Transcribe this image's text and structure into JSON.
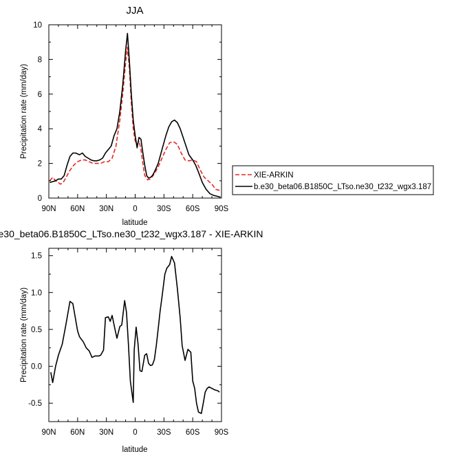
{
  "chart_data": [
    {
      "type": "line",
      "title": "JJA",
      "xlabel": "latitude",
      "ylabel": "Precipitation rate (mm/day)",
      "xlim": [
        90,
        -90
      ],
      "ylim": [
        0,
        10
      ],
      "xticks": [
        90,
        60,
        30,
        0,
        -30,
        -60,
        -90
      ],
      "xtick_labels": [
        "90N",
        "60N",
        "30N",
        "0",
        "30S",
        "60S",
        "90S"
      ],
      "yticks": [
        0,
        2,
        4,
        6,
        8,
        10
      ],
      "ytick_labels": [
        "0",
        "2",
        "4",
        "6",
        "8",
        "10"
      ],
      "grid": false,
      "legend": "right",
      "series": [
        {
          "name": "XIE-ARKIN",
          "color": "#e8261f",
          "dash": "dashed",
          "x": [
            89,
            86,
            83,
            80,
            78,
            75,
            72,
            68,
            64,
            60,
            56,
            52,
            48,
            44,
            40,
            36,
            32,
            28,
            24,
            20,
            16,
            13,
            10,
            8,
            6,
            4,
            2,
            0,
            -2,
            -4,
            -6,
            -8,
            -10,
            -13,
            -16,
            -20,
            -24,
            -28,
            -32,
            -36,
            -40,
            -44,
            -48,
            -52,
            -56,
            -60,
            -64,
            -68,
            -72,
            -76,
            -80,
            -84,
            -88
          ],
          "values": [
            1.0,
            1.2,
            1.0,
            0.9,
            0.8,
            0.9,
            1.2,
            1.6,
            1.9,
            2.1,
            2.2,
            2.2,
            2.1,
            2.0,
            2.0,
            2.0,
            2.1,
            2.1,
            2.3,
            3.0,
            4.5,
            6.0,
            7.8,
            8.7,
            7.5,
            5.5,
            4.0,
            3.3,
            3.1,
            3.3,
            2.8,
            2.0,
            1.3,
            1.05,
            1.1,
            1.4,
            1.8,
            2.3,
            2.8,
            3.2,
            3.25,
            3.1,
            2.6,
            2.2,
            2.15,
            2.2,
            2.1,
            1.6,
            1.2,
            1.0,
            0.8,
            0.5,
            0.45
          ]
        },
        {
          "name": "b.e30_beta06.B1850C_LTso.ne30_t232_wgx3.187",
          "color": "#000000",
          "dash": "solid",
          "x": [
            89,
            86,
            83,
            80,
            77,
            74,
            71,
            68,
            65,
            62,
            58,
            55,
            52,
            49,
            46,
            43,
            40,
            37,
            34,
            31,
            28,
            25,
            22,
            19,
            16,
            13,
            10,
            8,
            6,
            4,
            2,
            0,
            -2,
            -4,
            -6,
            -8,
            -10,
            -12,
            -14,
            -16,
            -18,
            -20,
            -24,
            -28,
            -32,
            -35,
            -38,
            -41,
            -44,
            -47,
            -50,
            -53,
            -56,
            -60,
            -63,
            -66,
            -70,
            -74,
            -78,
            -82,
            -86,
            -89
          ],
          "values": [
            0.9,
            0.95,
            1.0,
            1.1,
            1.1,
            1.3,
            1.9,
            2.4,
            2.6,
            2.6,
            2.5,
            2.6,
            2.4,
            2.3,
            2.2,
            2.15,
            2.15,
            2.2,
            2.3,
            2.6,
            2.8,
            3.0,
            3.6,
            4.0,
            5.0,
            6.5,
            8.5,
            9.5,
            7.9,
            6.0,
            4.5,
            3.6,
            2.9,
            3.5,
            3.4,
            2.6,
            1.9,
            1.3,
            1.15,
            1.2,
            1.3,
            1.5,
            2.0,
            2.8,
            3.6,
            4.1,
            4.4,
            4.5,
            4.35,
            4.0,
            3.5,
            3.0,
            2.5,
            2.2,
            1.9,
            1.5,
            0.9,
            0.5,
            0.25,
            0.15,
            0.1,
            0.05
          ]
        }
      ]
    },
    {
      "type": "line",
      "title": "e30_beta06.B1850C_LTso.ne30_t232_wgx3.187 - XIE-ARKIN",
      "xlabel": "latitude",
      "ylabel": "Precipitation rate (mm/day)",
      "xlim": [
        90,
        -90
      ],
      "ylim": [
        -0.75,
        1.6
      ],
      "xticks": [
        90,
        60,
        30,
        0,
        -30,
        -60,
        -90
      ],
      "xtick_labels": [
        "90N",
        "60N",
        "30N",
        "0",
        "30S",
        "60S",
        "90S"
      ],
      "yticks": [
        -0.5,
        0,
        0.5,
        1,
        1.5
      ],
      "ytick_labels": [
        "-0.5",
        "0.0",
        "0.5",
        "1.0",
        "1.5"
      ],
      "grid": false,
      "series": [
        {
          "name": "",
          "color": "#000000",
          "dash": "solid",
          "x": [
            88,
            86,
            83,
            80,
            76,
            72,
            68,
            65,
            63,
            60,
            58,
            54,
            51,
            48,
            45,
            42,
            38,
            36,
            33,
            31,
            28,
            26,
            24,
            21,
            19,
            16,
            14,
            11,
            9,
            7,
            5,
            2,
            1,
            -1,
            -3,
            -5,
            -7,
            -10,
            -12,
            -14,
            -16,
            -18,
            -20,
            -22,
            -24,
            -26,
            -28,
            -31,
            -33,
            -36,
            -38,
            -41,
            -44,
            -47,
            -49,
            -52,
            -55,
            -58,
            -60,
            -62,
            -64,
            -66,
            -69,
            -71,
            -73,
            -75,
            -77,
            -80,
            -83,
            -86,
            -88
          ],
          "values": [
            -0.08,
            -0.22,
            0.0,
            0.15,
            0.3,
            0.58,
            0.88,
            0.85,
            0.7,
            0.48,
            0.4,
            0.33,
            0.25,
            0.21,
            0.12,
            0.14,
            0.14,
            0.15,
            0.22,
            0.66,
            0.67,
            0.61,
            0.69,
            0.5,
            0.38,
            0.54,
            0.56,
            0.89,
            0.73,
            0.3,
            -0.2,
            -0.49,
            0.22,
            0.53,
            0.3,
            -0.06,
            -0.07,
            0.15,
            0.17,
            0.04,
            0.01,
            0.02,
            0.09,
            0.28,
            0.51,
            0.75,
            0.94,
            1.25,
            1.33,
            1.38,
            1.49,
            1.4,
            1.05,
            0.65,
            0.28,
            0.08,
            0.23,
            0.19,
            -0.2,
            -0.3,
            -0.5,
            -0.62,
            -0.64,
            -0.5,
            -0.35,
            -0.3,
            -0.28,
            -0.3,
            -0.32,
            -0.33,
            -0.35
          ]
        }
      ]
    }
  ]
}
